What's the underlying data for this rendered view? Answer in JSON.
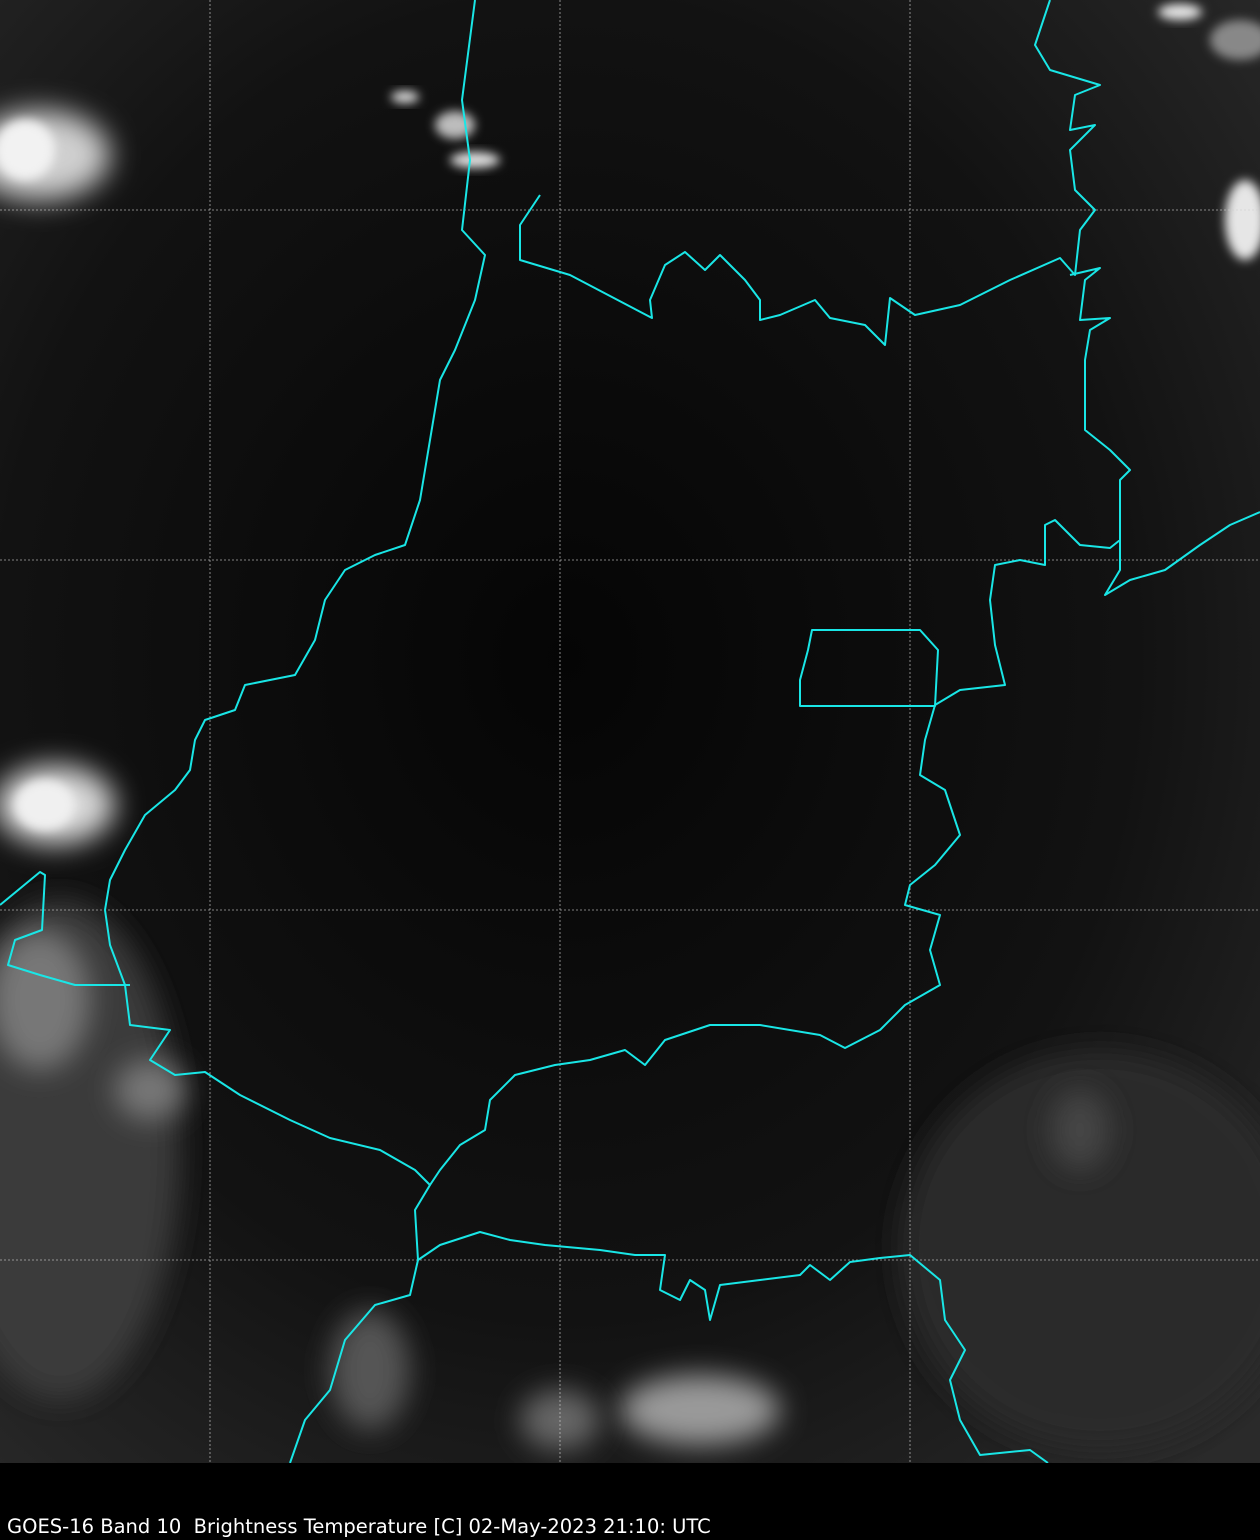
{
  "caption": "GOES-16 Band 10  Brightness Temperature [C] 02-May-2023 21:10: UTC",
  "colors": {
    "background": "#000000",
    "border": "#19e6e6",
    "grid": "#cfcfcf"
  },
  "map": {
    "grid": true,
    "grid_style": "dashed",
    "colormap": "grayscale"
  }
}
